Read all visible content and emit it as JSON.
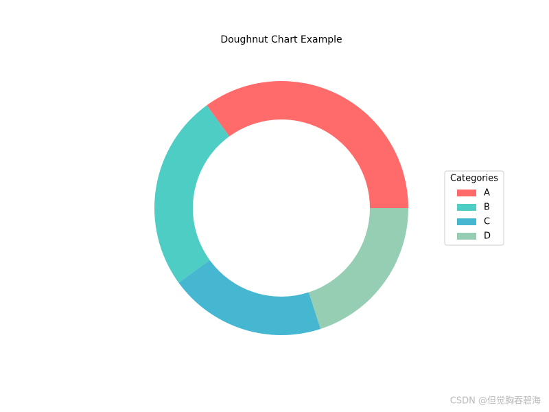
{
  "chart_data": {
    "type": "pie",
    "title": "Doughnut Chart Example",
    "categories": [
      "A",
      "B",
      "C",
      "D"
    ],
    "values": [
      35,
      25,
      20,
      20
    ],
    "colors": [
      "#ff6b6b",
      "#4ecdc4",
      "#45b7d1",
      "#96ceb4"
    ],
    "legend_title": "Categories",
    "legend": "right"
  },
  "watermark": "CSDN @但觉胸吞碧海"
}
